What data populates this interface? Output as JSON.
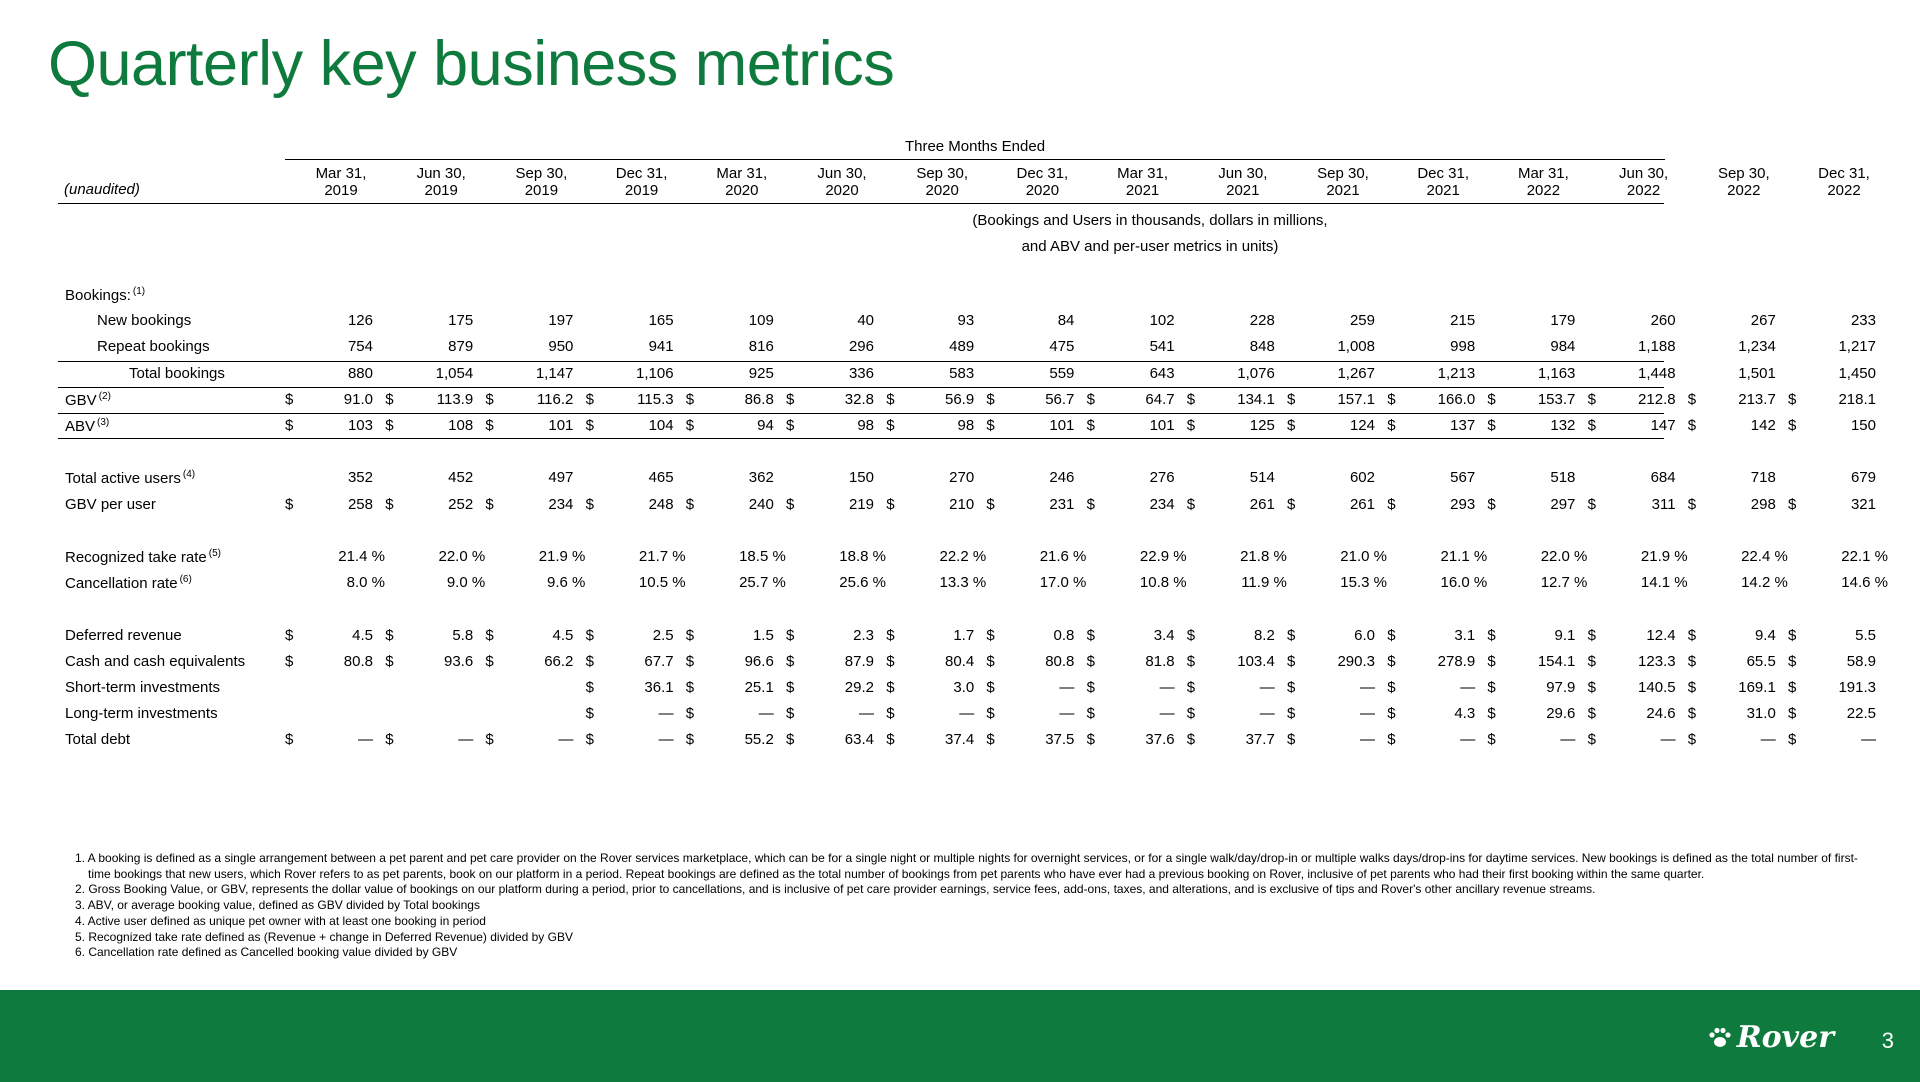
{
  "title": "Quarterly key business metrics",
  "header": {
    "group_label": "Three Months Ended",
    "unaudited": "(unaudited)",
    "periods": [
      {
        "l1": "Mar 31,",
        "l2": "2019"
      },
      {
        "l1": "Jun 30,",
        "l2": "2019"
      },
      {
        "l1": "Sep 30,",
        "l2": "2019"
      },
      {
        "l1": "Dec 31,",
        "l2": "2019"
      },
      {
        "l1": "Mar 31,",
        "l2": "2020"
      },
      {
        "l1": "Jun 30,",
        "l2": "2020"
      },
      {
        "l1": "Sep 30,",
        "l2": "2020"
      },
      {
        "l1": "Dec 31,",
        "l2": "2020"
      },
      {
        "l1": "Mar 31,",
        "l2": "2021"
      },
      {
        "l1": "Jun 30,",
        "l2": "2021"
      },
      {
        "l1": "Sep 30,",
        "l2": "2021"
      },
      {
        "l1": "Dec 31,",
        "l2": "2021"
      },
      {
        "l1": "Mar 31,",
        "l2": "2022"
      },
      {
        "l1": "Jun 30,",
        "l2": "2022"
      },
      {
        "l1": "Sep 30,",
        "l2": "2022"
      },
      {
        "l1": "Dec 31,",
        "l2": "2022"
      }
    ],
    "units_line1": "(Bookings and Users in thousands, dollars in millions,",
    "units_line2": "and ABV and per-user metrics in units)"
  },
  "rows": [
    {
      "label": "Bookings:",
      "sup": "(1)",
      "values": []
    },
    {
      "label": "New bookings",
      "indent": 1,
      "values": [
        "126",
        "175",
        "197",
        "165",
        "109",
        "40",
        "93",
        "84",
        "102",
        "228",
        "259",
        "215",
        "179",
        "260",
        "267",
        "233"
      ]
    },
    {
      "label": "Repeat bookings",
      "indent": 1,
      "values": [
        "754",
        "879",
        "950",
        "941",
        "816",
        "296",
        "489",
        "475",
        "541",
        "848",
        "1,008",
        "998",
        "984",
        "1,188",
        "1,234",
        "1,217"
      ]
    },
    {
      "label": "Total bookings",
      "indent": 2,
      "line_above": true,
      "values": [
        "880",
        "1,054",
        "1,147",
        "1,106",
        "925",
        "336",
        "583",
        "559",
        "643",
        "1,076",
        "1,267",
        "1,213",
        "1,163",
        "1,448",
        "1,501",
        "1,450"
      ]
    },
    {
      "label": "GBV",
      "sup": "(2)",
      "line_above": true,
      "values": [
        "$|91.0",
        "$|113.9",
        "$|116.2",
        "$|115.3",
        "$|86.8",
        "$|32.8",
        "$|56.9",
        "$|56.7",
        "$|64.7",
        "$|134.1",
        "$|157.1",
        "$|166.0",
        "$|153.7",
        "$|212.8",
        "$|213.7",
        "$|218.1"
      ]
    },
    {
      "label": "ABV",
      "sup": "(3)",
      "line_above": true,
      "line_below": true,
      "values": [
        "$|103",
        "$|108",
        "$|101",
        "$|104",
        "$|94",
        "$|98",
        "$|98",
        "$|101",
        "$|101",
        "$|125",
        "$|124",
        "$|137",
        "$|132",
        "$|147",
        "$|142",
        "$|150"
      ]
    },
    {
      "label": "",
      "values": []
    },
    {
      "label": "Total active users",
      "sup": "(4)",
      "values": [
        "352",
        "452",
        "497",
        "465",
        "362",
        "150",
        "270",
        "246",
        "276",
        "514",
        "602",
        "567",
        "518",
        "684",
        "718",
        "679"
      ]
    },
    {
      "label": "GBV per user",
      "values": [
        "$|258",
        "$|252",
        "$|234",
        "$|248",
        "$|240",
        "$|219",
        "$|210",
        "$|231",
        "$|234",
        "$|261",
        "$|261",
        "$|293",
        "$|297",
        "$|311",
        "$|298",
        "$|321"
      ]
    },
    {
      "label": "",
      "values": []
    },
    {
      "label": "Recognized take rate",
      "sup": "(5)",
      "values": [
        "21.4 %",
        "22.0 %",
        "21.9 %",
        "21.7 %",
        "18.5 %",
        "18.8 %",
        "22.2 %",
        "21.6 %",
        "22.9 %",
        "21.8 %",
        "21.0 %",
        "21.1 %",
        "22.0 %",
        "21.9 %",
        "22.4 %",
        "22.1 %"
      ]
    },
    {
      "label": "Cancellation rate",
      "sup": "(6)",
      "values": [
        "8.0 %",
        "9.0 %",
        "9.6 %",
        "10.5 %",
        "25.7 %",
        "25.6 %",
        "13.3 %",
        "17.0 %",
        "10.8 %",
        "11.9 %",
        "15.3 %",
        "16.0 %",
        "12.7 %",
        "14.1 %",
        "14.2 %",
        "14.6 %"
      ]
    },
    {
      "label": "",
      "values": []
    },
    {
      "label": "Deferred revenue",
      "values": [
        "$|4.5",
        "$|5.8",
        "$|4.5",
        "$|2.5",
        "$|1.5",
        "$|2.3",
        "$|1.7",
        "$|0.8",
        "$|3.4",
        "$|8.2",
        "$|6.0",
        "$|3.1",
        "$|9.1",
        "$|12.4",
        "$|9.4",
        "$|5.5"
      ]
    },
    {
      "label": "Cash and cash equivalents",
      "values": [
        "$|80.8",
        "$|93.6",
        "$|66.2",
        "$|67.7",
        "$|96.6",
        "$|87.9",
        "$|80.4",
        "$|80.8",
        "$|81.8",
        "$|103.4",
        "$|290.3",
        "$|278.9",
        "$|154.1",
        "$|123.3",
        "$|65.5",
        "$|58.9"
      ]
    },
    {
      "label": "Short-term investments",
      "values": [
        "",
        "",
        "",
        "$|36.1",
        "$|25.1",
        "$|29.2",
        "$|3.0",
        "$|—",
        "$|—",
        "$|—",
        "$|—",
        "$|—",
        "$|97.9",
        "$|140.5",
        "$|169.1",
        "$|191.3"
      ]
    },
    {
      "label": "Long-term investments",
      "values": [
        "",
        "",
        "",
        "$|—",
        "$|—",
        "$|—",
        "$|—",
        "$|—",
        "$|—",
        "$|—",
        "$|—",
        "$|4.3",
        "$|29.6",
        "$|24.6",
        "$|31.0",
        "$|22.5"
      ]
    },
    {
      "label": "Total debt",
      "values": [
        "$|—",
        "$|—",
        "$|—",
        "$|—",
        "$|55.2",
        "$|63.4",
        "$|37.4",
        "$|37.5",
        "$|37.6",
        "$|37.7",
        "$|—",
        "$|—",
        "$|—",
        "$|—",
        "$|—",
        "$|—"
      ]
    }
  ],
  "notes": [
    "1. A booking is defined as a single arrangement between a pet parent and pet care provider on the Rover services marketplace, which can be for a single night or multiple nights for overnight services, or for a single walk/day/drop-in or multiple walks days/drop-ins for daytime services. New bookings is defined as the total number of first-time bookings that new users, which Rover refers to as pet parents, book on our platform in a period. Repeat bookings are defined as the total number of bookings from pet parents who have ever had a previous booking on Rover, inclusive of pet parents who had their first booking within the same quarter.",
    "2. Gross Booking Value, or GBV, represents the dollar value of bookings on our platform during a period, prior to cancellations, and is inclusive of pet care provider earnings, service fees, add-ons, taxes, and alterations, and is exclusive of tips and Rover's other ancillary revenue streams.",
    "3. ABV, or average booking value, defined as GBV divided by Total bookings",
    "4. Active user defined as unique pet owner with at least one booking in period",
    "5. Recognized take rate defined as (Revenue + change in Deferred Revenue) divided by GBV",
    "6. Cancellation rate defined as Cancelled booking value divided by GBV"
  ],
  "footer": {
    "logo_text": "Rover",
    "page_number": "3",
    "color": "#0f7a3d"
  }
}
